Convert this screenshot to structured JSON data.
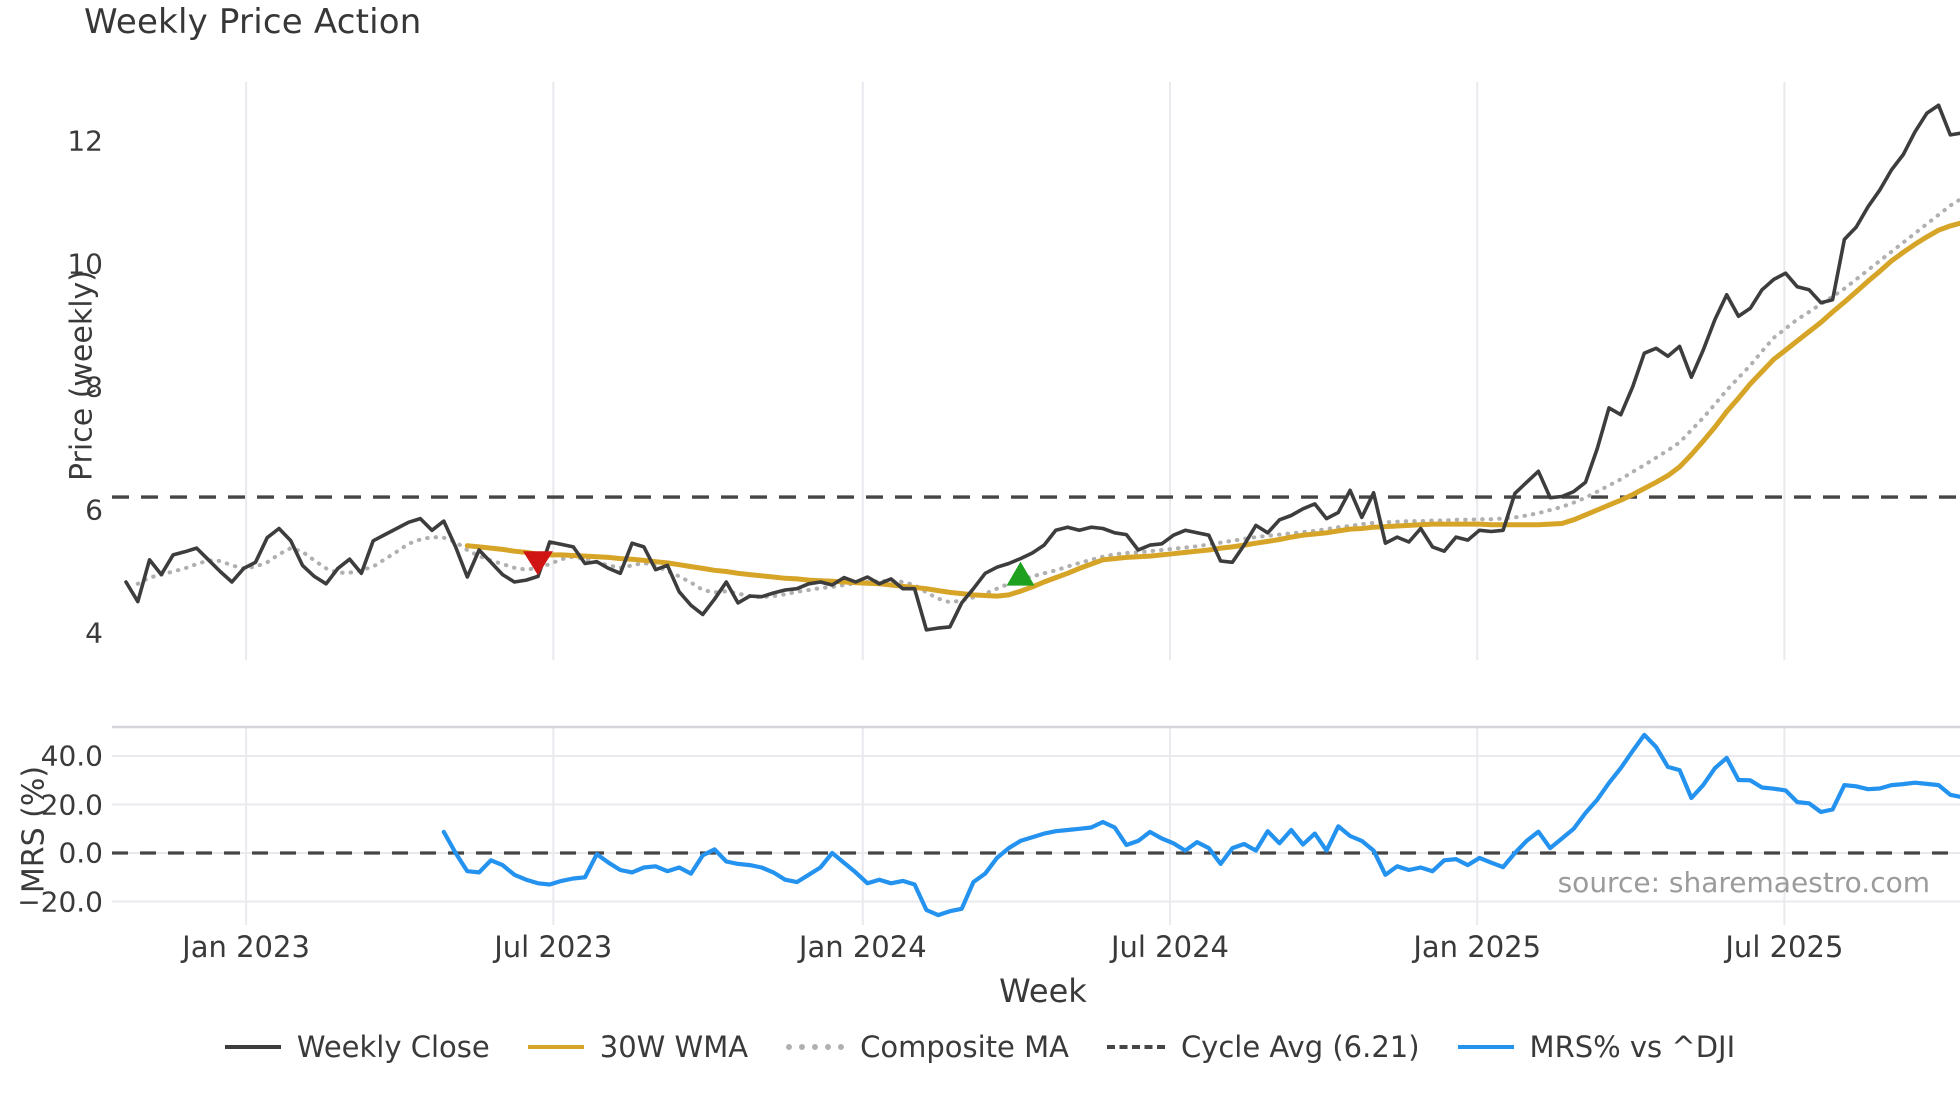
{
  "title": "Weekly Price Action",
  "source_note": "source: sharemaestro.com",
  "price_axis": {
    "label": "Price (weekly)",
    "tick_labels": [
      "12",
      "10",
      "8",
      "6",
      "4"
    ],
    "tick_values": [
      12,
      10,
      8,
      6,
      4
    ]
  },
  "mrs_axis": {
    "label": "MRS (%)",
    "tick_labels": [
      "40.0",
      "20.0",
      "0.0",
      "−20.0"
    ],
    "tick_values": [
      40,
      20,
      0,
      -20
    ]
  },
  "x_axis": {
    "label": "Week",
    "tick_labels": [
      "Jan 2023",
      "Jul 2023",
      "Jan 2024",
      "Jul 2024",
      "Jan 2025",
      "Jul 2025"
    ],
    "tick_weeks": [
      10.2,
      36.3,
      62.6,
      88.7,
      114.8,
      140.9
    ]
  },
  "legend": {
    "items": [
      {
        "label": "Weekly Close",
        "swatch": "close"
      },
      {
        "label": "30W WMA",
        "swatch": "wma"
      },
      {
        "label": "Composite MA",
        "swatch": "composite"
      },
      {
        "label": "Cycle Avg (6.21)",
        "swatch": "cycle"
      },
      {
        "label": "MRS% vs ^DJI",
        "swatch": "mrs"
      }
    ]
  },
  "colors": {
    "close": "#3d3d3d",
    "wma": "#d6a427",
    "composite": "#b0b0b0",
    "cycle": "#454545",
    "mrs": "#2492ef",
    "sell_marker": "#d01414",
    "buy_marker": "#1fa01f",
    "grid": "#e9e9ee",
    "spine": "#d5d5d9",
    "text": "#3a3a3a",
    "source_text": "#9b9b9b"
  },
  "chart_data": [
    {
      "panel": "price",
      "type": "line",
      "ylabel": "Price (weekly)",
      "ylim": [
        3.55,
        12.95
      ],
      "x_unit": "week_index",
      "weeks_total": 157,
      "grid": "vertical-only",
      "cycle_avg": 6.21,
      "markers": [
        {
          "name": "sell-triangle-down",
          "week": 35,
          "price": 5.15
        },
        {
          "name": "buy-triangle-up",
          "week": 76,
          "price": 4.95
        }
      ],
      "series": [
        {
          "name": "Weekly Close",
          "start_week": 0,
          "values": [
            4.83,
            4.51,
            5.19,
            4.95,
            5.27,
            5.32,
            5.38,
            5.19,
            5.0,
            4.83,
            5.05,
            5.15,
            5.55,
            5.7,
            5.5,
            5.1,
            4.92,
            4.8,
            5.05,
            5.2,
            4.97,
            5.5,
            5.6,
            5.7,
            5.8,
            5.86,
            5.67,
            5.82,
            5.4,
            4.91,
            5.35,
            5.15,
            4.95,
            4.83,
            4.86,
            4.92,
            5.48,
            5.44,
            5.4,
            5.13,
            5.16,
            5.05,
            4.97,
            5.46,
            5.4,
            5.03,
            5.1,
            4.67,
            4.45,
            4.3,
            4.55,
            4.83,
            4.49,
            4.6,
            4.59,
            4.65,
            4.7,
            4.72,
            4.8,
            4.83,
            4.78,
            4.9,
            4.83,
            4.91,
            4.8,
            4.88,
            4.72,
            4.72,
            4.05,
            4.08,
            4.1,
            4.49,
            4.72,
            4.97,
            5.07,
            5.13,
            5.21,
            5.3,
            5.43,
            5.67,
            5.72,
            5.67,
            5.72,
            5.7,
            5.63,
            5.6,
            5.35,
            5.43,
            5.45,
            5.59,
            5.67,
            5.63,
            5.59,
            5.17,
            5.15,
            5.43,
            5.75,
            5.63,
            5.84,
            5.91,
            6.02,
            6.1,
            5.86,
            5.96,
            6.32,
            5.88,
            6.28,
            5.46,
            5.56,
            5.48,
            5.7,
            5.4,
            5.33,
            5.56,
            5.51,
            5.67,
            5.65,
            5.67,
            6.27,
            6.45,
            6.63,
            6.2,
            6.22,
            6.3,
            6.45,
            7.0,
            7.66,
            7.55,
            8.0,
            8.55,
            8.63,
            8.5,
            8.66,
            8.16,
            8.6,
            9.1,
            9.5,
            9.15,
            9.28,
            9.58,
            9.75,
            9.85,
            9.63,
            9.58,
            9.37,
            9.42,
            10.4,
            10.6,
            10.93,
            11.2,
            11.53,
            11.78,
            12.15,
            12.45,
            12.58,
            12.1,
            12.13
          ]
        },
        {
          "name": "30W WMA",
          "start_week": 29,
          "values": [
            5.42,
            5.4,
            5.38,
            5.36,
            5.33,
            5.31,
            5.28,
            5.27,
            5.27,
            5.26,
            5.25,
            5.24,
            5.23,
            5.21,
            5.2,
            5.18,
            5.16,
            5.14,
            5.11,
            5.08,
            5.05,
            5.02,
            5.0,
            4.97,
            4.95,
            4.93,
            4.91,
            4.89,
            4.88,
            4.86,
            4.85,
            4.84,
            4.83,
            4.82,
            4.81,
            4.8,
            4.78,
            4.76,
            4.74,
            4.72,
            4.69,
            4.66,
            4.64,
            4.62,
            4.61,
            4.6,
            4.62,
            4.68,
            4.75,
            4.83,
            4.9,
            4.97,
            5.05,
            5.12,
            5.19,
            5.21,
            5.23,
            5.24,
            5.25,
            5.27,
            5.29,
            5.31,
            5.33,
            5.35,
            5.38,
            5.4,
            5.43,
            5.46,
            5.49,
            5.52,
            5.56,
            5.59,
            5.61,
            5.63,
            5.66,
            5.69,
            5.7,
            5.72,
            5.73,
            5.74,
            5.75,
            5.76,
            5.77,
            5.77,
            5.77,
            5.77,
            5.77,
            5.76,
            5.76,
            5.76,
            5.76,
            5.76,
            5.77,
            5.78,
            5.84,
            5.92,
            6.0,
            6.08,
            6.16,
            6.25,
            6.35,
            6.45,
            6.56,
            6.7,
            6.9,
            7.12,
            7.35,
            7.6,
            7.82,
            8.05,
            8.25,
            8.45,
            8.6,
            8.75,
            8.9,
            9.05,
            9.22,
            9.38,
            9.55,
            9.72,
            9.88,
            10.05,
            10.19,
            10.32,
            10.44,
            10.55,
            10.62,
            10.67
          ]
        },
        {
          "name": "Composite MA",
          "start_week": 1,
          "values": [
            4.8,
            4.9,
            4.95,
            5.0,
            5.05,
            5.12,
            5.18,
            5.17,
            5.1,
            5.05,
            5.08,
            5.15,
            5.28,
            5.38,
            5.32,
            5.18,
            5.05,
            4.98,
            4.98,
            5.02,
            5.08,
            5.2,
            5.32,
            5.45,
            5.52,
            5.56,
            5.55,
            5.48,
            5.35,
            5.25,
            5.18,
            5.12,
            5.06,
            5.03,
            5.06,
            5.12,
            5.2,
            5.24,
            5.2,
            5.15,
            5.1,
            5.06,
            5.1,
            5.14,
            5.09,
            5.01,
            4.92,
            4.82,
            4.7,
            4.66,
            4.68,
            4.64,
            4.6,
            4.58,
            4.6,
            4.63,
            4.67,
            4.7,
            4.73,
            4.75,
            4.78,
            4.81,
            4.83,
            4.84,
            4.85,
            4.83,
            4.78,
            4.66,
            4.56,
            4.5,
            4.53,
            4.58,
            4.64,
            4.72,
            4.8,
            4.87,
            4.92,
            4.97,
            5.02,
            5.08,
            5.14,
            5.19,
            5.24,
            5.28,
            5.3,
            5.31,
            5.33,
            5.35,
            5.37,
            5.39,
            5.41,
            5.44,
            5.47,
            5.5,
            5.53,
            5.56,
            5.58,
            5.6,
            5.62,
            5.64,
            5.66,
            5.69,
            5.72,
            5.74,
            5.77,
            5.79,
            5.8,
            5.81,
            5.82,
            5.82,
            5.83,
            5.83,
            5.84,
            5.84,
            5.85,
            5.85,
            5.86,
            5.88,
            5.91,
            5.95,
            6.0,
            6.05,
            6.12,
            6.2,
            6.3,
            6.4,
            6.5,
            6.62,
            6.73,
            6.85,
            6.97,
            7.1,
            7.3,
            7.5,
            7.72,
            7.95,
            8.15,
            8.35,
            8.58,
            8.8,
            8.95,
            9.1,
            9.22,
            9.35,
            9.47,
            9.6,
            9.75,
            9.9,
            10.05,
            10.2,
            10.35,
            10.5,
            10.65,
            10.8,
            10.95,
            11.07
          ]
        }
      ]
    },
    {
      "panel": "mrs",
      "type": "line",
      "ylabel": "MRS (%)",
      "ylim": [
        -30,
        52
      ],
      "zero_line": 0,
      "x_unit": "week_index",
      "grid": "horizontal-and-vertical",
      "series": [
        {
          "name": "MRS% vs ^DJI",
          "start_week": 27,
          "values": [
            8.7,
            0.0,
            -7.5,
            -8.0,
            -3.0,
            -5.0,
            -9.0,
            -11.0,
            -12.5,
            -13.0,
            -11.5,
            -10.5,
            -10.0,
            -0.5,
            -4.0,
            -7.0,
            -8.0,
            -6.0,
            -5.5,
            -7.5,
            -6.0,
            -8.5,
            -1.0,
            1.5,
            -3.5,
            -4.5,
            -5.0,
            -6.0,
            -8.0,
            -11.0,
            -12.0,
            -9.0,
            -6.0,
            0.0,
            -4.0,
            -8.0,
            -12.5,
            -11.0,
            -12.5,
            -11.5,
            -13.0,
            -23.5,
            -25.6,
            -24.0,
            -23.0,
            -12.0,
            -8.5,
            -2.0,
            2.0,
            5.0,
            6.5,
            8.0,
            9.0,
            9.5,
            10.0,
            10.5,
            12.8,
            10.5,
            3.3,
            5.0,
            8.7,
            6.0,
            4.0,
            1.0,
            4.5,
            2.0,
            -4.5,
            2.0,
            3.7,
            1.0,
            9.0,
            4.0,
            9.5,
            3.5,
            8.0,
            1.0,
            11.0,
            7.0,
            5.0,
            1.0,
            -9.0,
            -5.5,
            -7.0,
            -6.0,
            -7.5,
            -3.0,
            -2.5,
            -5.0,
            -2.0,
            -4.0,
            -5.8,
            0.0,
            5.0,
            8.8,
            2.0,
            6.0,
            10.0,
            16.5,
            22.0,
            28.9,
            35.0,
            42.0,
            48.7,
            43.7,
            35.5,
            34.2,
            22.7,
            28.0,
            35.0,
            39.2,
            30.1,
            30.0,
            27.0,
            26.5,
            25.8,
            21.0,
            20.5,
            16.9,
            18.0,
            28.0,
            27.5,
            26.3,
            26.6,
            28.0,
            28.4,
            29.0,
            28.5,
            28.0,
            24.0,
            23.0
          ]
        }
      ]
    }
  ]
}
